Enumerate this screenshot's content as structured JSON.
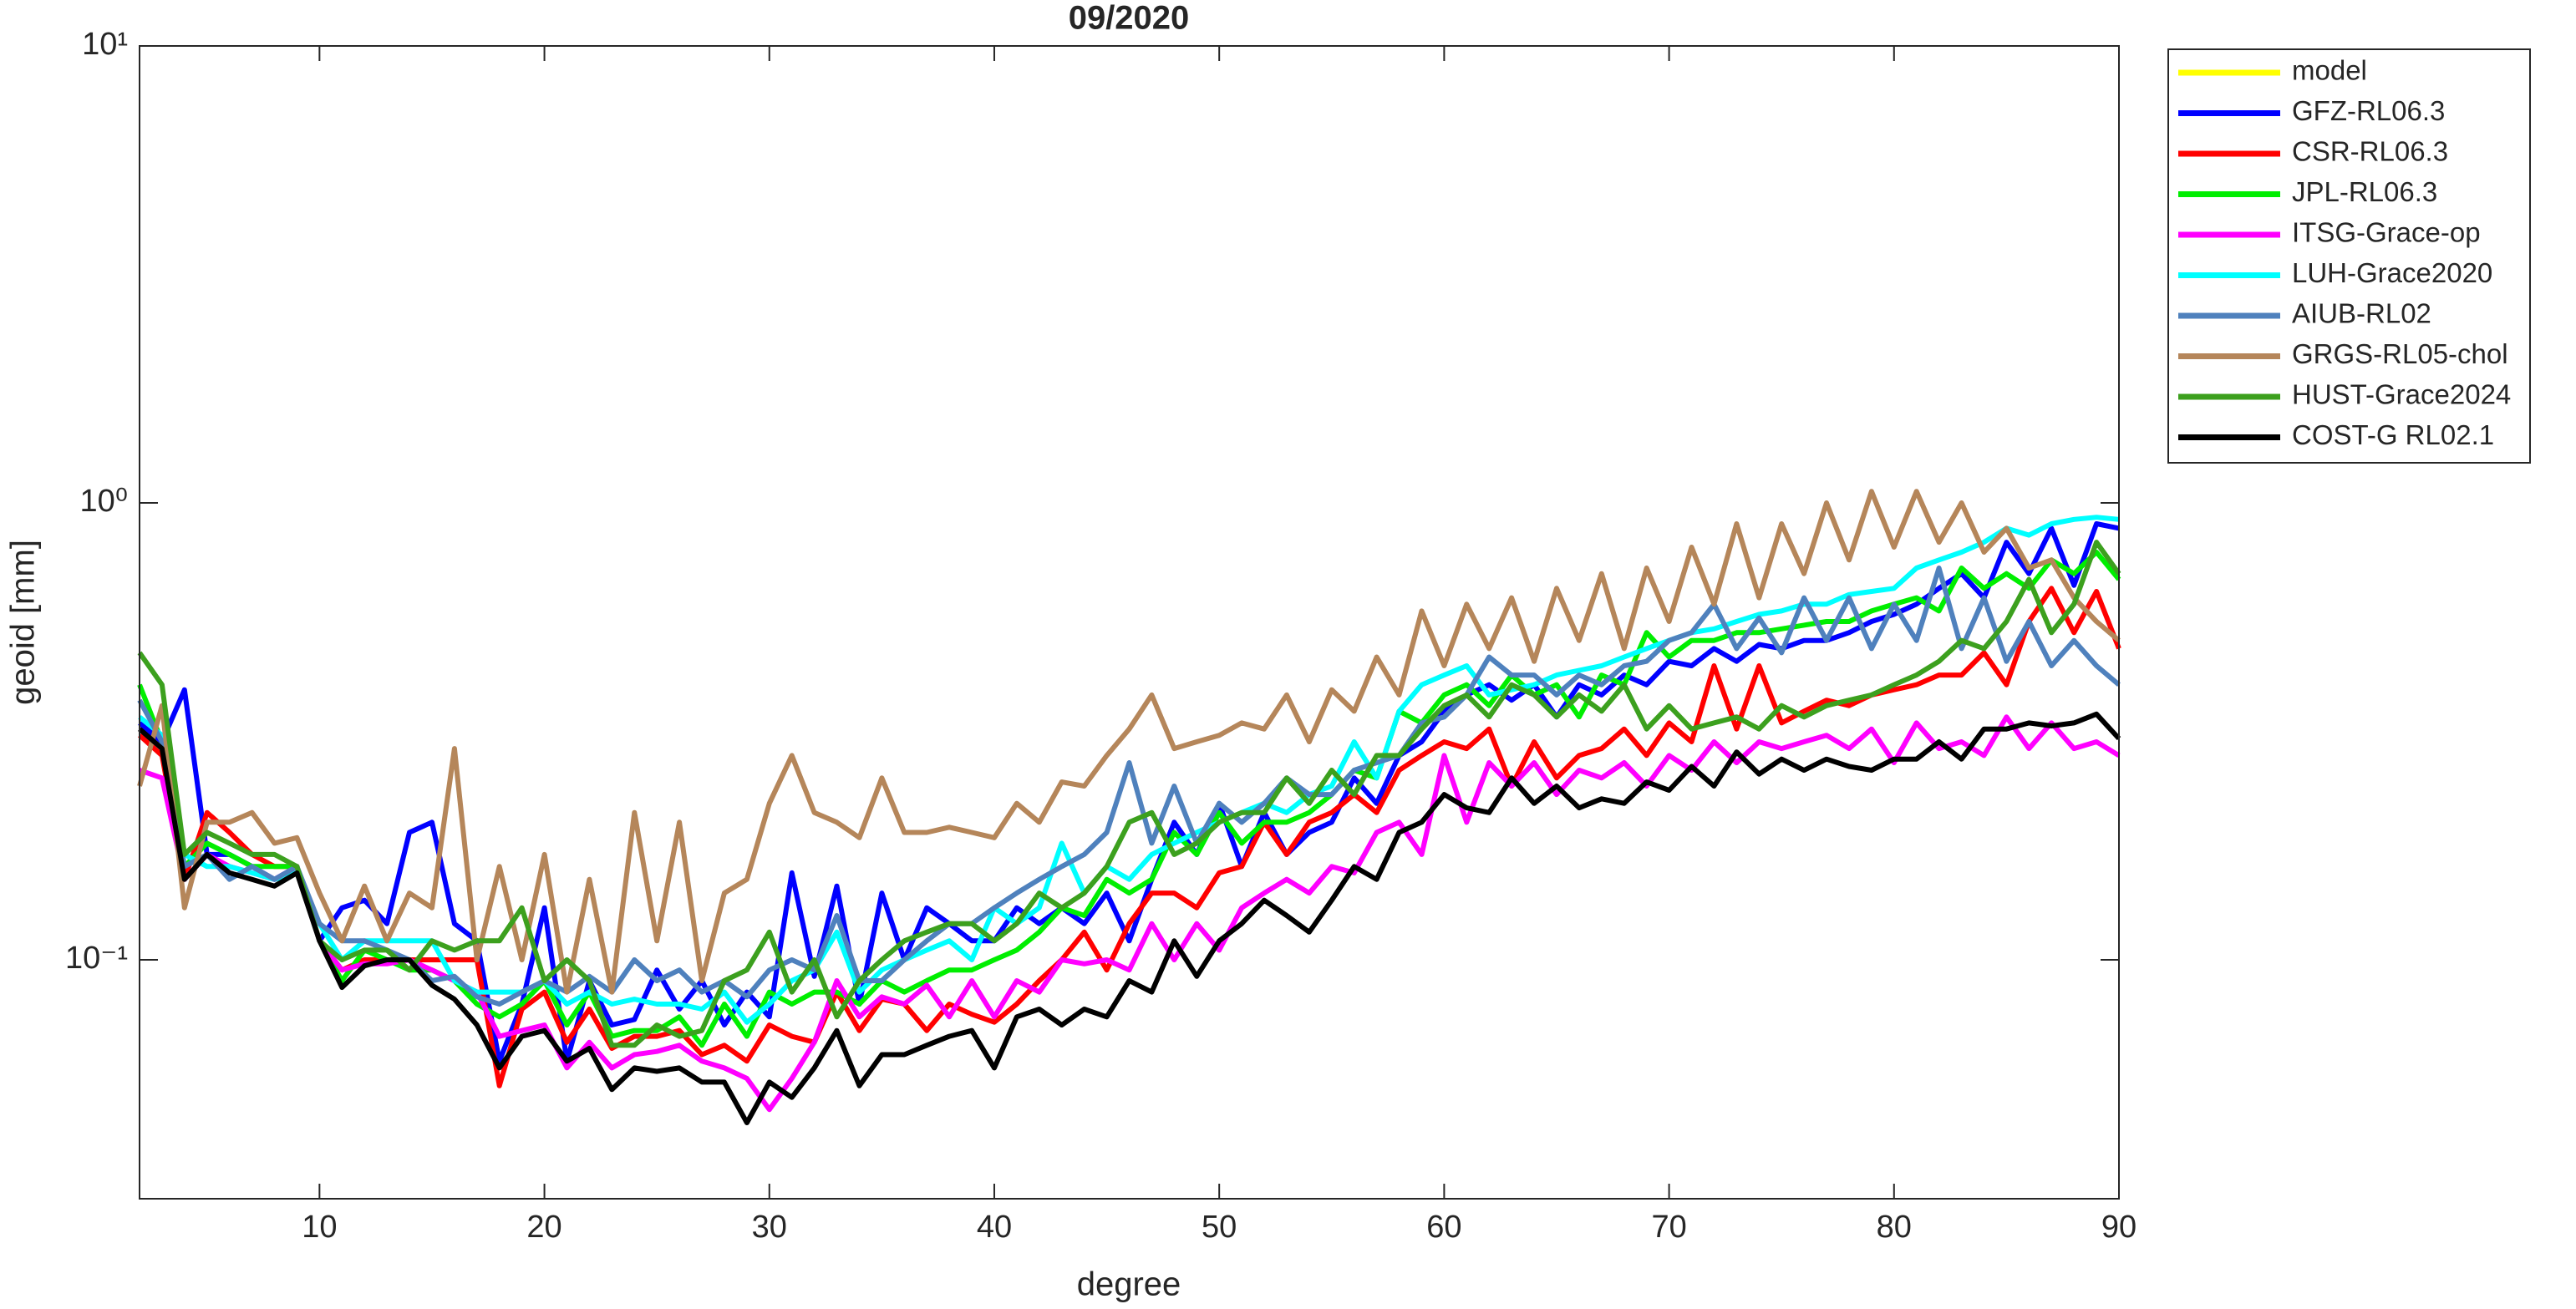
{
  "chart_data": {
    "type": "line",
    "title": "09/2020",
    "xlabel": "degree",
    "ylabel": "geoid [mm]",
    "yscale": "log",
    "legend": "northeastoutside",
    "grid": false,
    "xlim": [
      2,
      90
    ],
    "xticks": [
      10,
      20,
      30,
      40,
      50,
      60,
      70,
      80,
      90
    ],
    "ylim": [
      0.03,
      10
    ],
    "yticks": [
      {
        "value": 0.1,
        "label": "10⁻¹"
      },
      {
        "value": 1,
        "label": "10⁰"
      },
      {
        "value": 10,
        "label": "10¹"
      }
    ],
    "x": [
      2,
      3,
      4,
      5,
      6,
      7,
      8,
      9,
      10,
      11,
      12,
      13,
      14,
      15,
      16,
      17,
      18,
      19,
      20,
      21,
      22,
      23,
      24,
      25,
      26,
      27,
      28,
      29,
      30,
      31,
      32,
      33,
      34,
      35,
      36,
      37,
      38,
      39,
      40,
      41,
      42,
      43,
      44,
      45,
      46,
      47,
      48,
      49,
      50,
      51,
      52,
      53,
      54,
      55,
      56,
      57,
      58,
      59,
      60,
      61,
      62,
      63,
      64,
      65,
      66,
      67,
      68,
      69,
      70,
      71,
      72,
      73,
      74,
      75,
      76,
      77,
      78,
      79,
      80,
      81,
      82,
      83,
      84,
      85,
      86,
      87,
      88,
      89,
      90
    ],
    "series": [
      {
        "name": "model",
        "color": "#ffff00",
        "values": [
          null,
          null,
          null,
          null,
          null,
          null,
          null,
          null,
          null,
          null,
          null,
          null,
          null,
          null,
          null,
          null,
          null,
          null,
          null,
          null,
          null,
          null,
          null,
          null,
          null,
          null,
          null,
          null,
          null,
          null,
          null,
          null,
          null,
          null,
          null,
          null,
          null,
          null,
          null,
          null,
          null,
          null,
          null,
          null,
          null,
          null,
          null,
          null,
          null,
          null,
          null,
          null,
          null,
          null,
          null,
          null,
          null,
          null,
          null,
          null,
          null,
          null,
          null,
          null,
          null,
          null,
          null,
          null,
          null,
          null,
          null,
          null,
          null,
          null,
          null,
          null,
          null,
          null,
          null,
          null,
          null,
          null,
          null,
          null,
          null,
          null,
          null,
          null,
          null
        ]
      },
      {
        "name": "GFZ-RL06.3",
        "color": "#0000ff",
        "values": [
          0.33,
          0.3,
          0.39,
          0.17,
          0.17,
          0.16,
          0.15,
          0.16,
          0.11,
          0.13,
          0.135,
          0.12,
          0.19,
          0.2,
          0.12,
          0.11,
          0.06,
          0.08,
          0.13,
          0.06,
          0.09,
          0.072,
          0.074,
          0.095,
          0.078,
          0.09,
          0.072,
          0.085,
          0.075,
          0.155,
          0.092,
          0.145,
          0.08,
          0.14,
          0.1,
          0.13,
          0.12,
          0.11,
          0.11,
          0.13,
          0.12,
          0.13,
          0.12,
          0.14,
          0.11,
          0.15,
          0.2,
          0.17,
          0.22,
          0.16,
          0.21,
          0.17,
          0.19,
          0.2,
          0.25,
          0.22,
          0.28,
          0.3,
          0.35,
          0.38,
          0.4,
          0.37,
          0.4,
          0.34,
          0.4,
          0.38,
          0.42,
          0.4,
          0.45,
          0.44,
          0.48,
          0.45,
          0.49,
          0.48,
          0.5,
          0.5,
          0.52,
          0.55,
          0.57,
          0.6,
          0.65,
          0.7,
          0.62,
          0.82,
          0.7,
          0.88,
          0.66,
          0.9,
          0.88
        ]
      },
      {
        "name": "CSR-RL06.3",
        "color": "#ff0000",
        "values": [
          0.31,
          0.28,
          0.15,
          0.21,
          0.19,
          0.17,
          0.16,
          0.16,
          0.11,
          0.095,
          0.1,
          0.1,
          0.1,
          0.1,
          0.1,
          0.1,
          0.053,
          0.078,
          0.085,
          0.066,
          0.078,
          0.064,
          0.068,
          0.068,
          0.07,
          0.062,
          0.065,
          0.06,
          0.072,
          0.068,
          0.066,
          0.085,
          0.07,
          0.082,
          0.08,
          0.07,
          0.08,
          0.076,
          0.073,
          0.08,
          0.09,
          0.1,
          0.115,
          0.095,
          0.12,
          0.14,
          0.14,
          0.13,
          0.155,
          0.16,
          0.2,
          0.17,
          0.2,
          0.21,
          0.23,
          0.21,
          0.26,
          0.28,
          0.3,
          0.29,
          0.32,
          0.24,
          0.3,
          0.25,
          0.28,
          0.29,
          0.32,
          0.28,
          0.33,
          0.3,
          0.44,
          0.32,
          0.44,
          0.33,
          0.35,
          0.37,
          0.36,
          0.38,
          0.39,
          0.4,
          0.42,
          0.42,
          0.47,
          0.4,
          0.55,
          0.65,
          0.52,
          0.64,
          0.48
        ]
      },
      {
        "name": "JPL-RL06.3",
        "color": "#00ee00",
        "values": [
          0.4,
          0.3,
          0.16,
          0.18,
          0.17,
          0.16,
          0.16,
          0.16,
          0.11,
          0.09,
          0.105,
          0.1,
          0.095,
          0.095,
          0.09,
          0.08,
          0.075,
          0.08,
          0.09,
          0.072,
          0.085,
          0.068,
          0.07,
          0.07,
          0.075,
          0.065,
          0.08,
          0.068,
          0.085,
          0.08,
          0.085,
          0.085,
          0.08,
          0.09,
          0.085,
          0.09,
          0.095,
          0.095,
          0.1,
          0.105,
          0.115,
          0.13,
          0.125,
          0.15,
          0.14,
          0.15,
          0.19,
          0.17,
          0.21,
          0.18,
          0.2,
          0.2,
          0.21,
          0.23,
          0.26,
          0.25,
          0.35,
          0.33,
          0.38,
          0.4,
          0.36,
          0.42,
          0.38,
          0.4,
          0.34,
          0.42,
          0.4,
          0.52,
          0.46,
          0.5,
          0.5,
          0.52,
          0.52,
          0.53,
          0.54,
          0.55,
          0.55,
          0.58,
          0.6,
          0.62,
          0.58,
          0.72,
          0.65,
          0.7,
          0.65,
          0.75,
          0.7,
          0.78,
          0.68
        ]
      },
      {
        "name": "ITSG-Grace-op",
        "color": "#ff00ff",
        "values": [
          0.26,
          0.25,
          0.15,
          0.17,
          0.16,
          0.155,
          0.15,
          0.16,
          0.11,
          0.095,
          0.098,
          0.098,
          0.1,
          0.095,
          0.09,
          0.085,
          0.068,
          0.07,
          0.072,
          0.058,
          0.066,
          0.058,
          0.062,
          0.063,
          0.065,
          0.06,
          0.058,
          0.055,
          0.047,
          0.055,
          0.066,
          0.09,
          0.075,
          0.083,
          0.08,
          0.088,
          0.075,
          0.09,
          0.075,
          0.09,
          0.085,
          0.1,
          0.098,
          0.1,
          0.095,
          0.12,
          0.1,
          0.12,
          0.105,
          0.13,
          0.14,
          0.15,
          0.14,
          0.16,
          0.155,
          0.19,
          0.2,
          0.17,
          0.28,
          0.2,
          0.27,
          0.24,
          0.27,
          0.23,
          0.26,
          0.25,
          0.27,
          0.24,
          0.28,
          0.26,
          0.3,
          0.27,
          0.3,
          0.29,
          0.3,
          0.31,
          0.29,
          0.32,
          0.27,
          0.33,
          0.29,
          0.3,
          0.28,
          0.34,
          0.29,
          0.33,
          0.29,
          0.3,
          0.28
        ]
      },
      {
        "name": "LUH-Grace2020",
        "color": "#00ffff",
        "values": [
          0.34,
          0.31,
          0.17,
          0.16,
          0.16,
          0.155,
          0.15,
          0.155,
          0.12,
          0.1,
          0.11,
          0.11,
          0.11,
          0.11,
          0.09,
          0.085,
          0.085,
          0.085,
          0.09,
          0.08,
          0.085,
          0.08,
          0.082,
          0.08,
          0.08,
          0.078,
          0.085,
          0.073,
          0.08,
          0.09,
          0.095,
          0.115,
          0.085,
          0.095,
          0.1,
          0.105,
          0.11,
          0.1,
          0.13,
          0.12,
          0.13,
          0.18,
          0.14,
          0.16,
          0.15,
          0.17,
          0.18,
          0.19,
          0.2,
          0.21,
          0.22,
          0.21,
          0.23,
          0.24,
          0.3,
          0.25,
          0.35,
          0.4,
          0.42,
          0.44,
          0.38,
          0.39,
          0.4,
          0.42,
          0.43,
          0.44,
          0.46,
          0.48,
          0.5,
          0.52,
          0.53,
          0.55,
          0.57,
          0.58,
          0.6,
          0.6,
          0.63,
          0.64,
          0.65,
          0.72,
          0.75,
          0.78,
          0.82,
          0.88,
          0.85,
          0.9,
          0.92,
          0.93,
          0.92
        ]
      },
      {
        "name": "AIUB-RL02",
        "color": "#4f81bd",
        "values": [
          0.37,
          0.3,
          0.16,
          0.17,
          0.15,
          0.16,
          0.15,
          0.16,
          0.12,
          0.11,
          0.11,
          0.105,
          0.1,
          0.09,
          0.092,
          0.083,
          0.08,
          0.085,
          0.09,
          0.085,
          0.092,
          0.085,
          0.1,
          0.09,
          0.095,
          0.085,
          0.09,
          0.083,
          0.095,
          0.1,
          0.095,
          0.125,
          0.09,
          0.09,
          0.1,
          0.11,
          0.12,
          0.12,
          0.13,
          0.14,
          0.15,
          0.16,
          0.17,
          0.19,
          0.27,
          0.18,
          0.24,
          0.18,
          0.22,
          0.2,
          0.22,
          0.25,
          0.23,
          0.23,
          0.26,
          0.27,
          0.28,
          0.33,
          0.34,
          0.38,
          0.46,
          0.42,
          0.42,
          0.38,
          0.42,
          0.4,
          0.44,
          0.45,
          0.5,
          0.52,
          0.6,
          0.48,
          0.56,
          0.47,
          0.62,
          0.5,
          0.62,
          0.48,
          0.6,
          0.5,
          0.72,
          0.48,
          0.62,
          0.45,
          0.55,
          0.44,
          0.5,
          0.44,
          0.4
        ]
      },
      {
        "name": "GRGS-RL05-chol",
        "color": "#b5865a",
        "values": [
          0.24,
          0.36,
          0.13,
          0.2,
          0.2,
          0.21,
          0.18,
          0.185,
          0.14,
          0.11,
          0.145,
          0.11,
          0.14,
          0.13,
          0.29,
          0.1,
          0.16,
          0.1,
          0.17,
          0.085,
          0.15,
          0.085,
          0.21,
          0.11,
          0.2,
          0.09,
          0.14,
          0.15,
          0.22,
          0.28,
          0.21,
          0.2,
          0.185,
          0.25,
          0.19,
          0.19,
          0.195,
          0.19,
          0.185,
          0.22,
          0.2,
          0.245,
          0.24,
          0.28,
          0.32,
          0.38,
          0.29,
          0.3,
          0.31,
          0.33,
          0.32,
          0.38,
          0.3,
          0.39,
          0.35,
          0.46,
          0.38,
          0.58,
          0.44,
          0.6,
          0.48,
          0.62,
          0.45,
          0.65,
          0.5,
          0.7,
          0.48,
          0.72,
          0.55,
          0.8,
          0.6,
          0.9,
          0.62,
          0.9,
          0.7,
          1.0,
          0.75,
          1.06,
          0.8,
          1.06,
          0.82,
          1.0,
          0.78,
          0.88,
          0.72,
          0.75,
          0.62,
          0.55,
          0.5
        ]
      },
      {
        "name": "HUST-Grace2024",
        "color": "#3ca01e",
        "values": [
          0.47,
          0.4,
          0.17,
          0.19,
          0.18,
          0.17,
          0.17,
          0.16,
          0.11,
          0.1,
          0.105,
          0.105,
          0.095,
          0.11,
          0.105,
          0.11,
          0.11,
          0.13,
          0.09,
          0.1,
          0.09,
          0.065,
          0.065,
          0.072,
          0.068,
          0.07,
          0.09,
          0.095,
          0.115,
          0.085,
          0.1,
          0.075,
          0.09,
          0.1,
          0.11,
          0.115,
          0.12,
          0.12,
          0.11,
          0.12,
          0.14,
          0.13,
          0.14,
          0.16,
          0.2,
          0.21,
          0.17,
          0.18,
          0.2,
          0.21,
          0.21,
          0.25,
          0.22,
          0.26,
          0.23,
          0.28,
          0.28,
          0.32,
          0.36,
          0.38,
          0.34,
          0.4,
          0.38,
          0.34,
          0.38,
          0.35,
          0.4,
          0.32,
          0.36,
          0.32,
          0.33,
          0.34,
          0.32,
          0.36,
          0.34,
          0.36,
          0.37,
          0.38,
          0.4,
          0.42,
          0.45,
          0.5,
          0.48,
          0.55,
          0.68,
          0.52,
          0.6,
          0.82,
          0.7
        ]
      },
      {
        "name": "COST-G RL02.1",
        "color": "#000000",
        "values": [
          0.32,
          0.29,
          0.15,
          0.17,
          0.155,
          0.15,
          0.145,
          0.155,
          0.11,
          0.087,
          0.097,
          0.1,
          0.1,
          0.088,
          0.082,
          0.072,
          0.058,
          0.068,
          0.07,
          0.06,
          0.064,
          0.052,
          0.058,
          0.057,
          0.058,
          0.054,
          0.054,
          0.044,
          0.054,
          0.05,
          0.058,
          0.07,
          0.053,
          0.062,
          0.062,
          0.065,
          0.068,
          0.07,
          0.058,
          0.075,
          0.078,
          0.072,
          0.078,
          0.075,
          0.09,
          0.085,
          0.11,
          0.092,
          0.11,
          0.12,
          0.135,
          0.125,
          0.115,
          0.135,
          0.16,
          0.15,
          0.19,
          0.2,
          0.23,
          0.215,
          0.21,
          0.25,
          0.22,
          0.24,
          0.215,
          0.225,
          0.22,
          0.245,
          0.235,
          0.265,
          0.24,
          0.285,
          0.255,
          0.275,
          0.26,
          0.275,
          0.265,
          0.26,
          0.275,
          0.275,
          0.3,
          0.275,
          0.32,
          0.32,
          0.33,
          0.325,
          0.33,
          0.345,
          0.305
        ]
      }
    ]
  }
}
